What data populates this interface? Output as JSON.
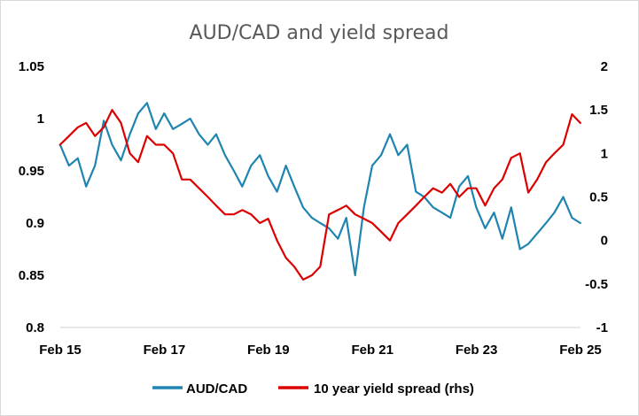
{
  "chart_data": {
    "type": "line",
    "title": "AUD/CAD and yield spread",
    "x_ticks": [
      "Feb 15",
      "Feb 17",
      "Feb 19",
      "Feb 21",
      "Feb 23",
      "Feb 25"
    ],
    "x_range": [
      "Feb 15",
      "Feb 25"
    ],
    "y_left": {
      "ticks": [
        "1.05",
        "1",
        "0.95",
        "0.9",
        "0.85",
        "0.8"
      ],
      "range": [
        0.8,
        1.05
      ]
    },
    "y_right": {
      "ticks": [
        "2",
        "1.5",
        "1",
        "0.5",
        "0",
        "-0.5",
        "-1"
      ],
      "range": [
        -1,
        2
      ]
    },
    "grid": false,
    "legend_position": "bottom",
    "series": [
      {
        "name": "AUD/CAD",
        "axis": "left",
        "color": "#1f84b0",
        "x": [
          2015.08,
          2015.25,
          2015.42,
          2015.58,
          2015.75,
          2015.92,
          2016.08,
          2016.25,
          2016.42,
          2016.58,
          2016.75,
          2016.92,
          2017.08,
          2017.25,
          2017.42,
          2017.58,
          2017.75,
          2017.92,
          2018.08,
          2018.25,
          2018.42,
          2018.58,
          2018.75,
          2018.92,
          2019.08,
          2019.25,
          2019.42,
          2019.58,
          2019.75,
          2019.92,
          2020.08,
          2020.25,
          2020.42,
          2020.58,
          2020.75,
          2020.92,
          2021.08,
          2021.25,
          2021.42,
          2021.58,
          2021.75,
          2021.92,
          2022.08,
          2022.25,
          2022.42,
          2022.58,
          2022.75,
          2022.92,
          2023.08,
          2023.25,
          2023.42,
          2023.58,
          2023.75,
          2023.92,
          2024.08,
          2024.25,
          2024.42,
          2024.58,
          2024.75,
          2024.92,
          2025.08
        ],
        "values": [
          0.975,
          0.955,
          0.962,
          0.935,
          0.955,
          0.998,
          0.975,
          0.96,
          0.985,
          1.005,
          1.015,
          0.99,
          1.005,
          0.99,
          0.995,
          1.0,
          0.985,
          0.975,
          0.985,
          0.965,
          0.95,
          0.935,
          0.955,
          0.965,
          0.945,
          0.93,
          0.955,
          0.935,
          0.915,
          0.905,
          0.9,
          0.895,
          0.885,
          0.905,
          0.85,
          0.915,
          0.955,
          0.965,
          0.985,
          0.965,
          0.975,
          0.93,
          0.925,
          0.915,
          0.91,
          0.905,
          0.935,
          0.945,
          0.915,
          0.895,
          0.91,
          0.885,
          0.915,
          0.875,
          0.88,
          0.89,
          0.9,
          0.91,
          0.925,
          0.905,
          0.9
        ]
      },
      {
        "name": "10 year yield spread (rhs)",
        "axis": "right",
        "color": "#dd0000",
        "x": [
          2015.08,
          2015.25,
          2015.42,
          2015.58,
          2015.75,
          2015.92,
          2016.08,
          2016.25,
          2016.42,
          2016.58,
          2016.75,
          2016.92,
          2017.08,
          2017.25,
          2017.42,
          2017.58,
          2017.75,
          2017.92,
          2018.08,
          2018.25,
          2018.42,
          2018.58,
          2018.75,
          2018.92,
          2019.08,
          2019.25,
          2019.42,
          2019.58,
          2019.75,
          2019.92,
          2020.08,
          2020.25,
          2020.42,
          2020.58,
          2020.75,
          2020.92,
          2021.08,
          2021.25,
          2021.42,
          2021.58,
          2021.75,
          2021.92,
          2022.08,
          2022.25,
          2022.42,
          2022.58,
          2022.75,
          2022.92,
          2023.08,
          2023.25,
          2023.42,
          2023.58,
          2023.75,
          2023.92,
          2024.08,
          2024.25,
          2024.42,
          2024.58,
          2024.75,
          2024.92,
          2025.08
        ],
        "values": [
          1.1,
          1.2,
          1.3,
          1.35,
          1.2,
          1.3,
          1.5,
          1.35,
          1.0,
          0.9,
          1.2,
          1.1,
          1.1,
          1.0,
          0.7,
          0.7,
          0.6,
          0.5,
          0.4,
          0.3,
          0.3,
          0.35,
          0.3,
          0.2,
          0.25,
          0.0,
          -0.2,
          -0.3,
          -0.45,
          -0.4,
          -0.3,
          0.3,
          0.35,
          0.4,
          0.3,
          0.25,
          0.2,
          0.1,
          0.0,
          0.2,
          0.3,
          0.4,
          0.5,
          0.6,
          0.55,
          0.65,
          0.5,
          0.6,
          0.6,
          0.4,
          0.6,
          0.7,
          0.95,
          1.0,
          0.55,
          0.7,
          0.9,
          1.0,
          1.1,
          1.45,
          1.35
        ]
      }
    ]
  }
}
